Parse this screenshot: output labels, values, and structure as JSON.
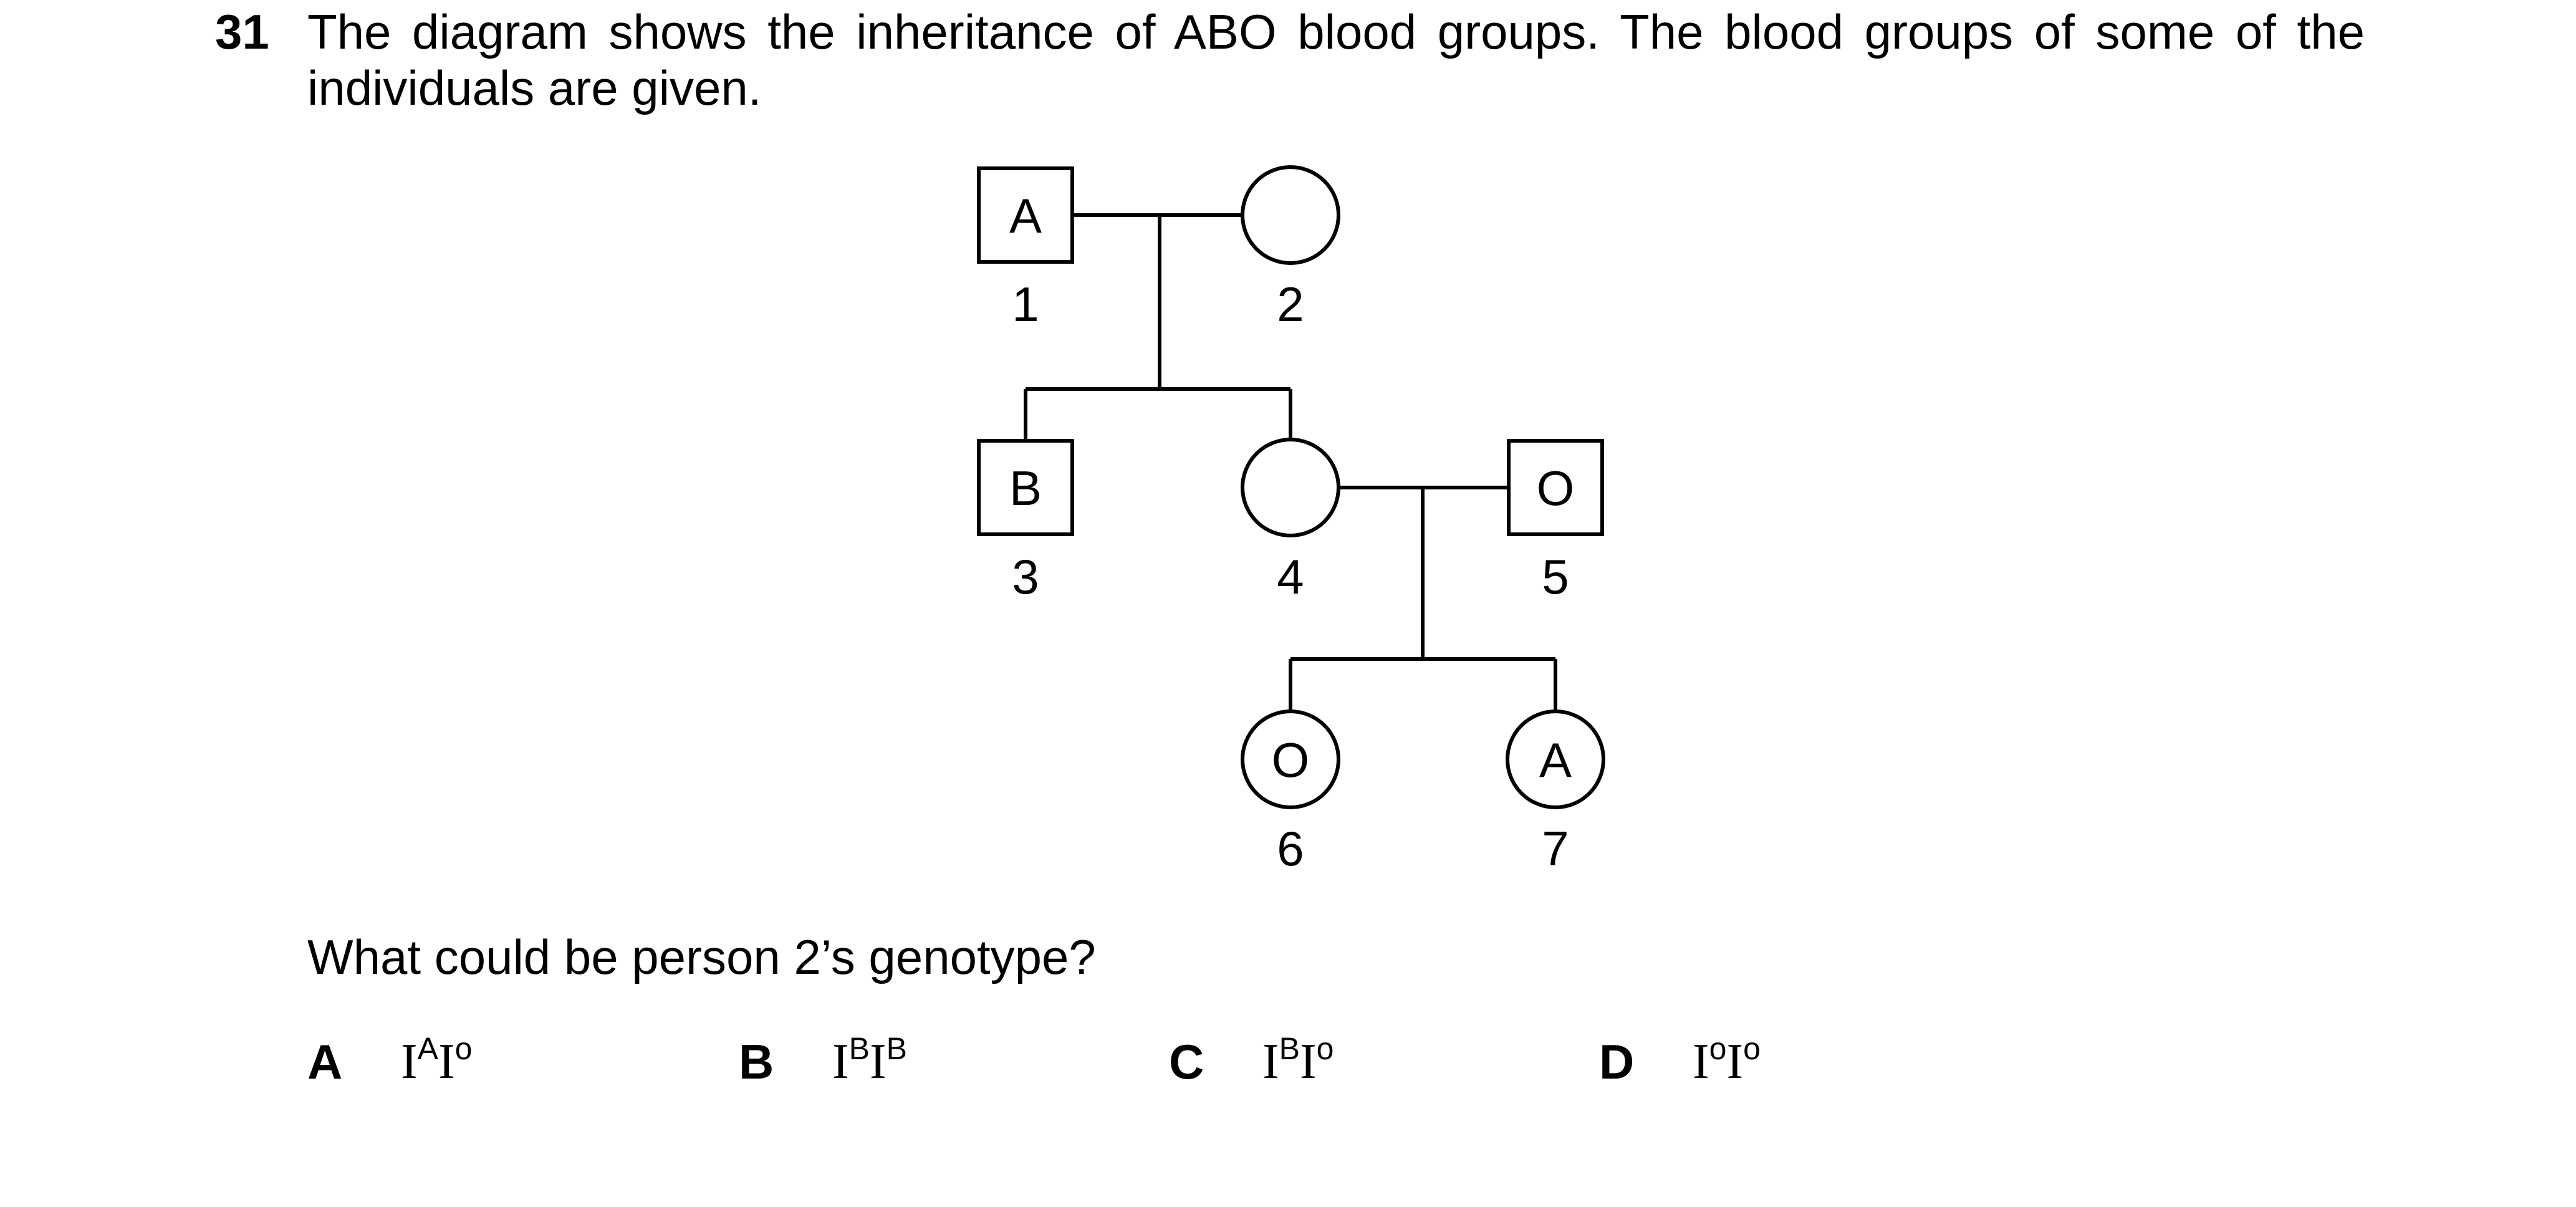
{
  "question": {
    "number": "31",
    "intro": "The diagram shows the inheritance of ABO blood groups. The blood groups of some of the individuals are given.",
    "prompt": "What could be person 2’s genotype?"
  },
  "pedigree": {
    "individuals": [
      {
        "id": "1",
        "sex": "male",
        "blood_group": "A"
      },
      {
        "id": "2",
        "sex": "female",
        "blood_group": ""
      },
      {
        "id": "3",
        "sex": "male",
        "blood_group": "B"
      },
      {
        "id": "4",
        "sex": "female",
        "blood_group": ""
      },
      {
        "id": "5",
        "sex": "male",
        "blood_group": "O"
      },
      {
        "id": "6",
        "sex": "female",
        "blood_group": "O"
      },
      {
        "id": "7",
        "sex": "female",
        "blood_group": "A"
      }
    ],
    "matings": [
      {
        "parents": [
          "1",
          "2"
        ],
        "children": [
          "3",
          "4"
        ]
      },
      {
        "parents": [
          "4",
          "5"
        ],
        "children": [
          "6",
          "7"
        ]
      }
    ]
  },
  "options": [
    {
      "letter": "A",
      "base1": "I",
      "sup1": "A",
      "base2": "I",
      "sup2": "o"
    },
    {
      "letter": "B",
      "base1": "I",
      "sup1": "B",
      "base2": "I",
      "sup2": "B"
    },
    {
      "letter": "C",
      "base1": "I",
      "sup1": "B",
      "base2": "I",
      "sup2": "o"
    },
    {
      "letter": "D",
      "base1": "I",
      "sup1": "o",
      "base2": "I",
      "sup2": "o"
    }
  ]
}
